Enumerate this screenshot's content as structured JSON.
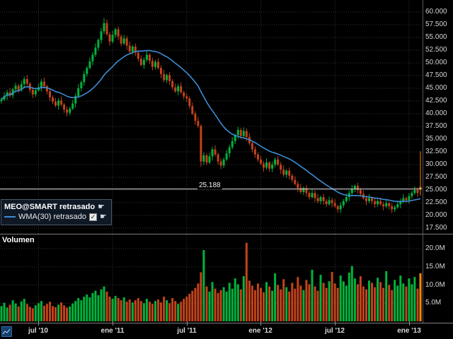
{
  "legend": {
    "symbol_label": "MEO@SMART retrasado",
    "wma_label": "WMA(30) retrasado"
  },
  "icons": {
    "hand": "☛",
    "check": "✓"
  },
  "volume_panel": {
    "title": "Volumen"
  },
  "last_price": {
    "label": "25.188",
    "value": 25.188
  },
  "colors": {
    "up": "#00b33c",
    "down": "#c2431c",
    "spike": "#ff8800",
    "wma": "#3d8bd4",
    "grid": "#323232",
    "axis_text": "#d6d6d6",
    "last_price_line": "#e0e0e0",
    "separator": "#7f7f7f"
  },
  "axes": {
    "price_ticks": [
      {
        "label": "60.000",
        "value": 60
      },
      {
        "label": "57.500",
        "value": 57.5
      },
      {
        "label": "55.000",
        "value": 55
      },
      {
        "label": "52.500",
        "value": 52.5
      },
      {
        "label": "50.000",
        "value": 50
      },
      {
        "label": "47.500",
        "value": 47.5
      },
      {
        "label": "45.000",
        "value": 45
      },
      {
        "label": "42.500",
        "value": 42.5
      },
      {
        "label": "40.000",
        "value": 40
      },
      {
        "label": "37.500",
        "value": 37.5
      },
      {
        "label": "35.000",
        "value": 35
      },
      {
        "label": "32.500",
        "value": 32.5
      },
      {
        "label": "30.000",
        "value": 30
      },
      {
        "label": "27.500",
        "value": 27.5
      },
      {
        "label": "25.000",
        "value": 25
      },
      {
        "label": "22.500",
        "value": 22.5
      },
      {
        "label": "20.000",
        "value": 20
      },
      {
        "label": "17.500",
        "value": 17.5
      }
    ],
    "volume_ticks": [
      {
        "label": "20.0M",
        "value": 20
      },
      {
        "label": "15.0M",
        "value": 15
      },
      {
        "label": "10.0M",
        "value": 10
      },
      {
        "label": "5.0M",
        "value": 5
      }
    ],
    "x_ticks": [
      {
        "label": "jul '10",
        "week": 13
      },
      {
        "label": "ene '11",
        "week": 39
      },
      {
        "label": "jul '11",
        "week": 65
      },
      {
        "label": "ene '12",
        "week": 91
      },
      {
        "label": "jul '12",
        "week": 117
      },
      {
        "label": "ene '13",
        "week": 143
      }
    ]
  },
  "chart_data": {
    "type": "candlestick+volume",
    "title": "MEO@SMART retrasado (delayed weekly candles)",
    "overlay": "WMA(30) retrasado",
    "wma_period": 30,
    "price_range": [
      17.5,
      60
    ],
    "volume_range_millions": [
      0,
      20
    ],
    "last_price": 25.188,
    "x_tick_labels": [
      "jul '10",
      "ene '11",
      "jul '11",
      "ene '12",
      "jul '12",
      "ene '13"
    ],
    "candles_format": [
      "open",
      "high",
      "low",
      "close",
      "volume_millions"
    ],
    "candles": [
      [
        42.5,
        43.2,
        42.0,
        42.8,
        4.2
      ],
      [
        42.8,
        44.2,
        42.5,
        43.5,
        5.1
      ],
      [
        43.5,
        44.7,
        42.7,
        44.2,
        3.8
      ],
      [
        44.2,
        45.0,
        43.2,
        43.6,
        4.6
      ],
      [
        43.6,
        45.1,
        43.0,
        44.8,
        5.8
      ],
      [
        44.8,
        46.1,
        44.1,
        45.5,
        4.9
      ],
      [
        45.5,
        45.9,
        44.1,
        44.6,
        4.1
      ],
      [
        44.6,
        46.5,
        44.3,
        45.8,
        5.5
      ],
      [
        45.8,
        47.3,
        45.0,
        46.8,
        6.2
      ],
      [
        46.8,
        47.6,
        45.5,
        45.9,
        4.8
      ],
      [
        45.9,
        46.2,
        44.1,
        44.7,
        4.0
      ],
      [
        44.7,
        45.3,
        43.1,
        43.8,
        3.6
      ],
      [
        43.8,
        45.0,
        43.3,
        44.6,
        4.4
      ],
      [
        44.6,
        45.9,
        44.3,
        45.2,
        5.0
      ],
      [
        45.2,
        46.8,
        44.4,
        46.3,
        5.6
      ],
      [
        46.3,
        47.1,
        45.0,
        45.4,
        4.3
      ],
      [
        45.4,
        45.7,
        43.8,
        44.4,
        4.8
      ],
      [
        44.4,
        45.0,
        42.5,
        43.2,
        5.4
      ],
      [
        43.2,
        43.6,
        41.9,
        42.4,
        4.2
      ],
      [
        42.4,
        43.1,
        41.3,
        41.6,
        3.9
      ],
      [
        41.6,
        43.1,
        40.8,
        42.6,
        4.6
      ],
      [
        42.6,
        43.4,
        41.4,
        41.8,
        5.2
      ],
      [
        41.8,
        42.1,
        40.2,
        40.8,
        4.4
      ],
      [
        40.8,
        41.4,
        39.5,
        40.2,
        3.8
      ],
      [
        40.2,
        41.4,
        39.7,
        41.0,
        4.1
      ],
      [
        41.0,
        42.7,
        40.7,
        42.0,
        4.9
      ],
      [
        42.0,
        44.0,
        41.2,
        43.5,
        5.6
      ],
      [
        43.5,
        45.8,
        43.1,
        45.0,
        6.4
      ],
      [
        45.0,
        46.5,
        44.4,
        46.2,
        5.8
      ],
      [
        46.2,
        48.4,
        45.5,
        47.8,
        6.8
      ],
      [
        47.8,
        49.4,
        47.3,
        49.0,
        7.4
      ],
      [
        49.0,
        51.0,
        48.7,
        50.3,
        6.6
      ],
      [
        50.3,
        52.1,
        49.5,
        51.6,
        7.8
      ],
      [
        51.6,
        53.8,
        51.2,
        53.0,
        8.4
      ],
      [
        53.0,
        54.8,
        52.4,
        54.5,
        7.2
      ],
      [
        54.5,
        56.8,
        53.8,
        56.2,
        8.8
      ],
      [
        56.2,
        58.8,
        55.7,
        57.8,
        9.6
      ],
      [
        57.8,
        58.5,
        55.3,
        55.6,
        8.2
      ],
      [
        55.6,
        56.1,
        53.4,
        54.2,
        6.8
      ],
      [
        54.2,
        56.3,
        53.8,
        55.5,
        6.2
      ],
      [
        55.5,
        56.9,
        54.9,
        56.6,
        7.0
      ],
      [
        56.6,
        57.2,
        54.5,
        55.2,
        6.4
      ],
      [
        55.2,
        55.6,
        53.3,
        53.8,
        5.8
      ],
      [
        53.8,
        55.5,
        53.5,
        54.8,
        6.6
      ],
      [
        54.8,
        55.3,
        52.6,
        53.4,
        5.4
      ],
      [
        53.4,
        54.2,
        51.8,
        52.2,
        6.0
      ],
      [
        52.2,
        53.5,
        51.6,
        53.2,
        5.2
      ],
      [
        53.2,
        53.8,
        51.3,
        52.0,
        5.8
      ],
      [
        52.0,
        52.4,
        50.3,
        50.8,
        6.4
      ],
      [
        50.8,
        51.5,
        49.3,
        49.6,
        5.6
      ],
      [
        49.6,
        51.1,
        48.8,
        50.6,
        5.0
      ],
      [
        50.6,
        52.4,
        50.2,
        51.6,
        6.2
      ],
      [
        51.6,
        51.9,
        49.8,
        50.4,
        5.4
      ],
      [
        50.4,
        51.0,
        48.5,
        49.2,
        4.8
      ],
      [
        49.2,
        50.6,
        48.7,
        50.2,
        5.6
      ],
      [
        50.2,
        50.9,
        48.7,
        49.0,
        6.0
      ],
      [
        49.0,
        49.5,
        47.0,
        47.8,
        5.2
      ],
      [
        47.8,
        48.6,
        46.2,
        46.6,
        6.8
      ],
      [
        46.6,
        47.9,
        46.0,
        47.6,
        5.8
      ],
      [
        47.6,
        48.2,
        45.7,
        46.4,
        5.0
      ],
      [
        46.4,
        46.8,
        44.7,
        45.2,
        6.4
      ],
      [
        45.2,
        45.9,
        44.1,
        44.4,
        5.6
      ],
      [
        44.4,
        45.9,
        43.6,
        45.4,
        4.8
      ],
      [
        45.4,
        46.2,
        43.8,
        44.2,
        5.4
      ],
      [
        44.2,
        44.5,
        42.8,
        43.4,
        6.2
      ],
      [
        43.4,
        44.0,
        42.3,
        43.0,
        6.8
      ],
      [
        43.0,
        43.4,
        41.0,
        41.5,
        7.6
      ],
      [
        41.5,
        42.2,
        39.7,
        40.0,
        8.4
      ],
      [
        40.0,
        40.5,
        37.8,
        38.6,
        9.2
      ],
      [
        38.6,
        39.4,
        37.2,
        37.6,
        10.4
      ],
      [
        37.6,
        37.9,
        29.6,
        30.6,
        13.5
      ],
      [
        30.6,
        32.4,
        29.9,
        31.8,
        19.6
      ],
      [
        31.8,
        32.2,
        29.9,
        30.4,
        9.6
      ],
      [
        30.4,
        32.3,
        30.1,
        31.6,
        8.2
      ],
      [
        31.6,
        33.5,
        30.8,
        33.0,
        10.8
      ],
      [
        33.0,
        33.8,
        31.6,
        32.0,
        9.0
      ],
      [
        32.0,
        32.3,
        30.0,
        30.6,
        7.8
      ],
      [
        30.6,
        31.2,
        29.1,
        29.8,
        8.6
      ],
      [
        29.8,
        31.4,
        29.3,
        31.0,
        9.4
      ],
      [
        31.0,
        32.9,
        30.7,
        32.2,
        8.2
      ],
      [
        32.2,
        33.9,
        31.4,
        33.4,
        10.6
      ],
      [
        33.4,
        35.4,
        33.0,
        34.6,
        9.0
      ],
      [
        34.6,
        36.1,
        34.0,
        35.8,
        11.8
      ],
      [
        35.8,
        37.4,
        35.1,
        36.8,
        10.2
      ],
      [
        36.8,
        37.2,
        35.1,
        35.6,
        8.8
      ],
      [
        35.6,
        37.3,
        35.3,
        36.6,
        12.4
      ],
      [
        36.6,
        37.1,
        34.6,
        35.4,
        21.6
      ],
      [
        35.4,
        36.2,
        33.8,
        34.2,
        11.2
      ],
      [
        34.2,
        34.5,
        32.4,
        33.0,
        9.8
      ],
      [
        33.0,
        33.6,
        31.3,
        32.0,
        8.6
      ],
      [
        32.0,
        32.4,
        30.5,
        31.0,
        10.4
      ],
      [
        31.0,
        31.7,
        29.9,
        30.2,
        9.2
      ],
      [
        30.2,
        30.7,
        28.6,
        29.4,
        8.0
      ],
      [
        29.4,
        31.2,
        29.0,
        30.4,
        10.8
      ],
      [
        30.4,
        30.7,
        28.6,
        29.2,
        9.6
      ],
      [
        29.2,
        30.6,
        28.5,
        30.0,
        8.4
      ],
      [
        30.0,
        31.4,
        29.5,
        31.0,
        13.2
      ],
      [
        31.0,
        31.7,
        29.7,
        30.0,
        10.0
      ],
      [
        30.0,
        30.5,
        28.2,
        29.0,
        8.8
      ],
      [
        29.0,
        29.8,
        27.6,
        28.0,
        11.6
      ],
      [
        28.0,
        29.1,
        27.4,
        28.8,
        9.4
      ],
      [
        28.8,
        29.4,
        27.1,
        27.8,
        8.2
      ],
      [
        27.8,
        28.2,
        26.5,
        27.0,
        10.6
      ],
      [
        27.0,
        27.7,
        25.9,
        26.2,
        9.0
      ],
      [
        26.2,
        26.7,
        24.6,
        25.4,
        12.2
      ],
      [
        25.4,
        26.2,
        24.2,
        24.6,
        9.8
      ],
      [
        24.6,
        25.7,
        24.0,
        25.4,
        8.6
      ],
      [
        25.4,
        26.0,
        23.7,
        24.4,
        11.4
      ],
      [
        24.4,
        24.8,
        23.1,
        23.6,
        10.2
      ],
      [
        23.6,
        25.1,
        23.3,
        24.4,
        14.2
      ],
      [
        24.4,
        24.9,
        22.6,
        23.4,
        9.6
      ],
      [
        23.4,
        24.2,
        22.4,
        22.8,
        8.4
      ],
      [
        22.8,
        23.9,
        22.2,
        23.6,
        12.8
      ],
      [
        23.6,
        24.2,
        22.1,
        22.8,
        10.6
      ],
      [
        22.8,
        23.2,
        21.7,
        22.2,
        9.2
      ],
      [
        22.2,
        23.7,
        21.9,
        23.0,
        11.0
      ],
      [
        23.0,
        23.5,
        21.6,
        22.4,
        13.6
      ],
      [
        22.4,
        23.2,
        21.4,
        21.8,
        10.4
      ],
      [
        21.8,
        22.1,
        20.6,
        21.2,
        9.2
      ],
      [
        21.2,
        22.6,
        20.5,
        22.0,
        12.6
      ],
      [
        22.0,
        23.2,
        21.5,
        22.8,
        11.0
      ],
      [
        22.8,
        24.3,
        22.5,
        23.6,
        9.8
      ],
      [
        23.6,
        24.9,
        22.8,
        24.4,
        13.4
      ],
      [
        24.4,
        26.0,
        24.0,
        25.2,
        15.2
      ],
      [
        25.2,
        26.1,
        24.6,
        25.8,
        11.8
      ],
      [
        25.8,
        26.4,
        24.3,
        25.0,
        10.2
      ],
      [
        25.0,
        25.4,
        23.7,
        24.2,
        12.4
      ],
      [
        24.2,
        24.9,
        23.1,
        23.4,
        9.6
      ],
      [
        23.4,
        23.9,
        22.0,
        22.8,
        8.8
      ],
      [
        22.8,
        24.2,
        22.4,
        23.4,
        11.2
      ],
      [
        23.4,
        23.7,
        22.2,
        22.8,
        10.6
      ],
      [
        22.8,
        23.4,
        21.5,
        22.2,
        9.4
      ],
      [
        22.2,
        23.2,
        21.7,
        22.8,
        12.0
      ],
      [
        22.8,
        23.5,
        21.9,
        22.2,
        10.8
      ],
      [
        22.2,
        22.7,
        21.0,
        21.8,
        9.2
      ],
      [
        21.8,
        23.2,
        21.4,
        22.4,
        13.8
      ],
      [
        22.4,
        22.7,
        21.2,
        21.8,
        10.0
      ],
      [
        21.8,
        22.4,
        20.5,
        21.2,
        8.6
      ],
      [
        21.2,
        22.0,
        20.7,
        21.6,
        11.4
      ],
      [
        21.6,
        22.9,
        21.3,
        22.2,
        9.8
      ],
      [
        22.2,
        23.3,
        21.4,
        22.8,
        12.6
      ],
      [
        22.8,
        24.2,
        22.4,
        23.4,
        10.4
      ],
      [
        23.4,
        23.7,
        22.4,
        23.0,
        9.6
      ],
      [
        23.0,
        24.4,
        22.3,
        23.8,
        11.8
      ],
      [
        23.8,
        24.8,
        23.3,
        24.4,
        10.2
      ],
      [
        24.4,
        25.7,
        24.1,
        25.0,
        12.2
      ],
      [
        25.0,
        25.5,
        23.6,
        24.4,
        9.0
      ],
      [
        25.6,
        32.6,
        23.9,
        25.19,
        13.2
      ]
    ]
  }
}
